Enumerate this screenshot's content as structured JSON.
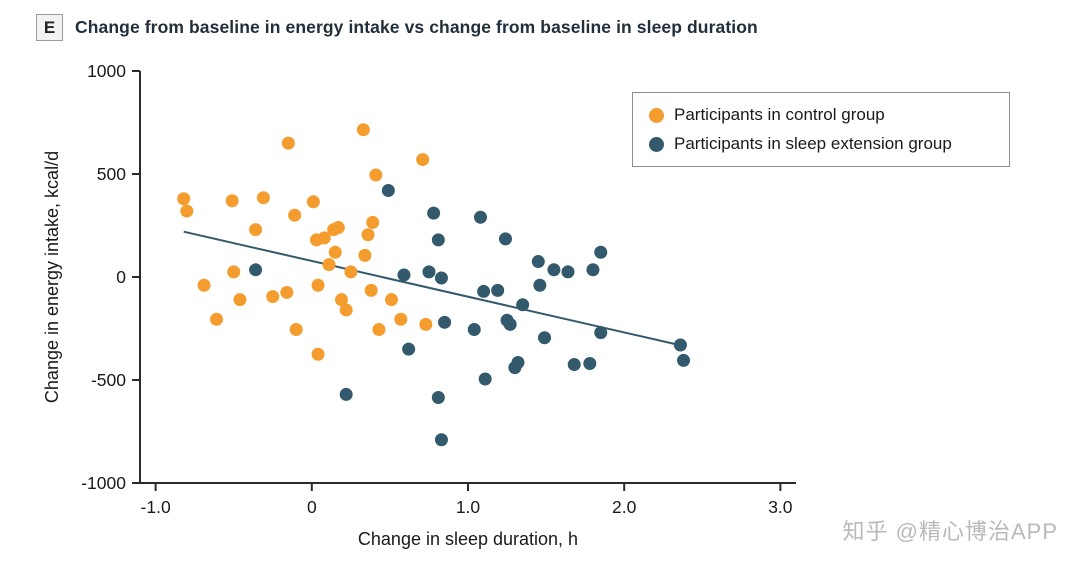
{
  "panel": {
    "letter": "E"
  },
  "title": "Change from baseline in energy intake vs change from baseline in sleep duration",
  "watermark": "知乎 @精心博治APP",
  "colors": {
    "control": "#F49C2D",
    "extension": "#33596C",
    "trend_line": "#33596C",
    "axis": "#2b2b2b",
    "tick_text": "#1a1a1a"
  },
  "chart_data": {
    "type": "scatter",
    "title": "Change from baseline in energy intake vs change from baseline in sleep duration",
    "xlabel": "Change in sleep duration, h",
    "ylabel": "Change in energy intake, kcal/d",
    "xlim": [
      -1.1,
      3.1
    ],
    "ylim": [
      -1000,
      1000
    ],
    "xticks": [
      -1.0,
      0,
      1.0,
      2.0,
      3.0
    ],
    "xtick_labels": [
      "-1.0",
      "0",
      "1.0",
      "2.0",
      "3.0"
    ],
    "yticks": [
      1000,
      500,
      0,
      -500,
      -1000
    ],
    "ytick_labels": [
      "1000",
      "500",
      "0",
      "-500",
      "-1000"
    ],
    "grid": false,
    "legend_position": "upper right",
    "legend": [
      {
        "label": "Participants in control group",
        "color": "#F49C2D"
      },
      {
        "label": "Participants in sleep extension group",
        "color": "#33596C"
      }
    ],
    "series": [
      {
        "name": "Participants in control group",
        "color": "#F49C2D",
        "points": [
          [
            -0.82,
            380
          ],
          [
            -0.8,
            320
          ],
          [
            -0.69,
            -40
          ],
          [
            -0.61,
            -205
          ],
          [
            -0.51,
            370
          ],
          [
            -0.5,
            25
          ],
          [
            -0.46,
            -110
          ],
          [
            -0.36,
            230
          ],
          [
            -0.31,
            385
          ],
          [
            -0.25,
            -95
          ],
          [
            -0.16,
            -75
          ],
          [
            -0.15,
            650
          ],
          [
            -0.11,
            300
          ],
          [
            -0.1,
            -255
          ],
          [
            0.01,
            365
          ],
          [
            0.03,
            180
          ],
          [
            0.04,
            -40
          ],
          [
            0.04,
            -375
          ],
          [
            0.08,
            190
          ],
          [
            0.11,
            60
          ],
          [
            0.14,
            230
          ],
          [
            0.15,
            120
          ],
          [
            0.17,
            240
          ],
          [
            0.19,
            -110
          ],
          [
            0.22,
            -160
          ],
          [
            0.25,
            25
          ],
          [
            0.33,
            715
          ],
          [
            0.34,
            105
          ],
          [
            0.36,
            205
          ],
          [
            0.38,
            -65
          ],
          [
            0.39,
            265
          ],
          [
            0.41,
            495
          ],
          [
            0.43,
            -255
          ],
          [
            0.51,
            -110
          ],
          [
            0.57,
            -205
          ],
          [
            0.71,
            570
          ],
          [
            0.73,
            -230
          ]
        ]
      },
      {
        "name": "Participants in sleep extension group",
        "color": "#33596C",
        "points": [
          [
            -0.36,
            35
          ],
          [
            0.22,
            -570
          ],
          [
            0.49,
            420
          ],
          [
            0.59,
            10
          ],
          [
            0.62,
            -350
          ],
          [
            0.75,
            25
          ],
          [
            0.78,
            310
          ],
          [
            0.81,
            180
          ],
          [
            0.81,
            -585
          ],
          [
            0.83,
            -5
          ],
          [
            0.83,
            -790
          ],
          [
            0.85,
            -220
          ],
          [
            1.04,
            -255
          ],
          [
            1.08,
            290
          ],
          [
            1.1,
            -70
          ],
          [
            1.11,
            -495
          ],
          [
            1.19,
            -65
          ],
          [
            1.24,
            185
          ],
          [
            1.25,
            -210
          ],
          [
            1.27,
            -230
          ],
          [
            1.3,
            -440
          ],
          [
            1.32,
            -415
          ],
          [
            1.35,
            -135
          ],
          [
            1.45,
            75
          ],
          [
            1.46,
            -40
          ],
          [
            1.49,
            -295
          ],
          [
            1.55,
            35
          ],
          [
            1.64,
            25
          ],
          [
            1.68,
            -425
          ],
          [
            1.78,
            -420
          ],
          [
            1.8,
            35
          ],
          [
            1.85,
            120
          ],
          [
            1.85,
            -270
          ],
          [
            2.36,
            -330
          ],
          [
            2.38,
            -405
          ]
        ]
      }
    ],
    "trend_line": {
      "x1": -0.82,
      "y1": 220,
      "x2": 2.38,
      "y2": -335
    }
  }
}
